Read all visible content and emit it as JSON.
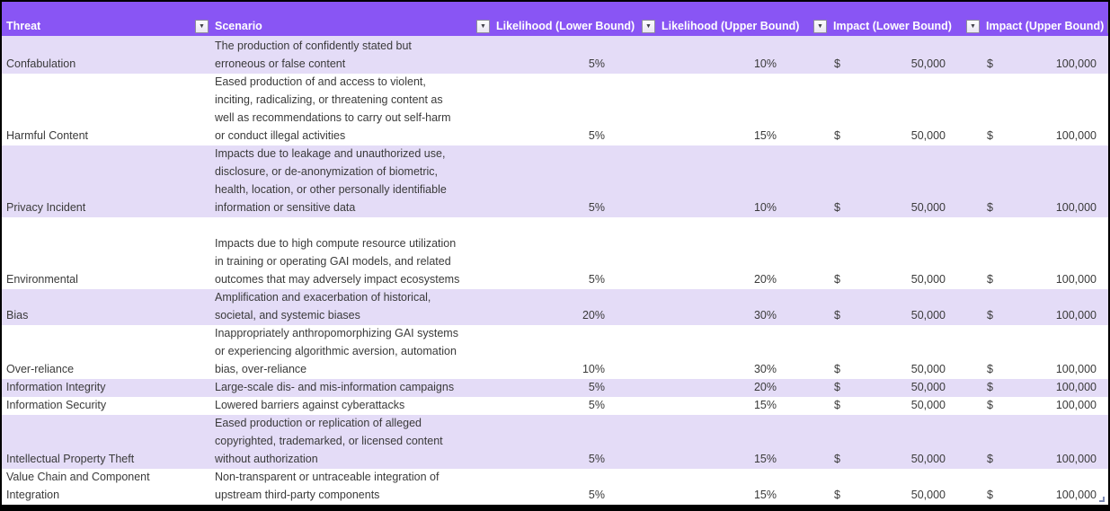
{
  "colors": {
    "header_bg": "#8955f4",
    "band_bg": "#e4dcf7",
    "header_text": "#ffffff",
    "body_text": "#3a3a3a"
  },
  "icons": {
    "filter_dropdown": "▼"
  },
  "table": {
    "currency_symbol": "$",
    "columns": [
      {
        "key": "threat",
        "label": "Threat"
      },
      {
        "key": "scenario",
        "label": "Scenario"
      },
      {
        "key": "likelihood_lower",
        "label": "Likelihood (Lower Bound)"
      },
      {
        "key": "likelihood_upper",
        "label": "Likelihood (Upper Bound)"
      },
      {
        "key": "impact_lower",
        "label": "Impact (Lower Bound)"
      },
      {
        "key": "impact_upper",
        "label": "Impact (Upper Bound)"
      }
    ],
    "rows": [
      {
        "threat": "Confabulation",
        "scenario": "The production of confidently stated but\nerroneous or false content",
        "likelihood_lower": "5%",
        "likelihood_upper": "10%",
        "impact_lower": "50,000",
        "impact_upper": "100,000"
      },
      {
        "threat": "Harmful Content",
        "scenario": "Eased production of and access to violent,\ninciting, radicalizing, or threatening content as\nwell as recommendations to carry out self-harm\nor conduct illegal activities",
        "likelihood_lower": "5%",
        "likelihood_upper": "15%",
        "impact_lower": "50,000",
        "impact_upper": "100,000"
      },
      {
        "threat": "Privacy Incident",
        "scenario": "Impacts due to leakage and unauthorized use,\ndisclosure, or de-anonymization of biometric,\nhealth, location, or other personally identifiable\ninformation or sensitive data",
        "likelihood_lower": "5%",
        "likelihood_upper": "10%",
        "impact_lower": "50,000",
        "impact_upper": "100,000"
      },
      {
        "threat": "Environmental",
        "scenario": "Impacts due to high compute resource utilization\nin training or operating GAI models, and related\noutcomes that may adversely impact ecosystems",
        "likelihood_lower": "5%",
        "likelihood_upper": "20%",
        "impact_lower": "50,000",
        "impact_upper": "100,000"
      },
      {
        "threat": "Bias",
        "scenario": "Amplification and exacerbation of historical,\nsocietal, and systemic biases",
        "likelihood_lower": "20%",
        "likelihood_upper": "30%",
        "impact_lower": "50,000",
        "impact_upper": "100,000"
      },
      {
        "threat": "Over-reliance",
        "scenario": "Inappropriately anthropomorphizing GAI systems\nor experiencing algorithmic aversion, automation\nbias, over-reliance",
        "likelihood_lower": "10%",
        "likelihood_upper": "30%",
        "impact_lower": "50,000",
        "impact_upper": "100,000"
      },
      {
        "threat": "Information Integrity",
        "scenario": "Large-scale dis- and mis-information campaigns",
        "likelihood_lower": "5%",
        "likelihood_upper": "20%",
        "impact_lower": "50,000",
        "impact_upper": "100,000"
      },
      {
        "threat": "Information Security",
        "scenario": "Lowered barriers against cyberattacks",
        "likelihood_lower": "5%",
        "likelihood_upper": "15%",
        "impact_lower": "50,000",
        "impact_upper": "100,000"
      },
      {
        "threat": "Intellectual Property Theft",
        "scenario": "Eased production or replication of alleged\ncopyrighted, trademarked, or licensed content\nwithout authorization",
        "likelihood_lower": "5%",
        "likelihood_upper": "15%",
        "impact_lower": "50,000",
        "impact_upper": "100,000"
      },
      {
        "threat": "Value Chain and Component\nIntegration",
        "scenario": "Non-transparent or untraceable integration of\nupstream third-party components",
        "likelihood_lower": "5%",
        "likelihood_upper": "15%",
        "impact_lower": "50,000",
        "impact_upper": "100,000"
      }
    ]
  }
}
